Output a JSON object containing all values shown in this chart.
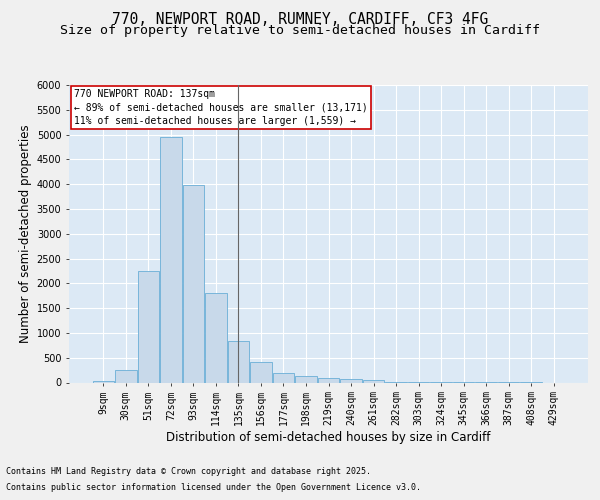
{
  "title_line1": "770, NEWPORT ROAD, RUMNEY, CARDIFF, CF3 4FG",
  "title_line2": "Size of property relative to semi-detached houses in Cardiff",
  "xlabel": "Distribution of semi-detached houses by size in Cardiff",
  "ylabel": "Number of semi-detached properties",
  "footer_line1": "Contains HM Land Registry data © Crown copyright and database right 2025.",
  "footer_line2": "Contains public sector information licensed under the Open Government Licence v3.0.",
  "categories": [
    "9sqm",
    "30sqm",
    "51sqm",
    "72sqm",
    "93sqm",
    "114sqm",
    "135sqm",
    "156sqm",
    "177sqm",
    "198sqm",
    "219sqm",
    "240sqm",
    "261sqm",
    "282sqm",
    "303sqm",
    "324sqm",
    "345sqm",
    "366sqm",
    "387sqm",
    "408sqm",
    "429sqm"
  ],
  "values": [
    30,
    255,
    2250,
    4950,
    3980,
    1800,
    840,
    410,
    200,
    130,
    90,
    65,
    45,
    20,
    10,
    5,
    3,
    2,
    1,
    1,
    0
  ],
  "bar_color": "#c8d9ea",
  "bar_edge_color": "#6aaed6",
  "highlight_index": 6,
  "highlight_line_color": "#666666",
  "annotation_text_line1": "770 NEWPORT ROAD: 137sqm",
  "annotation_text_line2": "← 89% of semi-detached houses are smaller (13,171)",
  "annotation_text_line3": "11% of semi-detached houses are larger (1,559) →",
  "annotation_box_facecolor": "#ffffff",
  "annotation_box_edgecolor": "#cc0000",
  "ylim": [
    0,
    6000
  ],
  "yticks": [
    0,
    500,
    1000,
    1500,
    2000,
    2500,
    3000,
    3500,
    4000,
    4500,
    5000,
    5500,
    6000
  ],
  "plot_bg_color": "#dce9f5",
  "fig_bg_color": "#f0f0f0",
  "grid_color": "#ffffff",
  "title_fontsize": 10.5,
  "subtitle_fontsize": 9.5,
  "axis_label_fontsize": 8.5,
  "tick_fontsize": 7,
  "annotation_fontsize": 7,
  "footer_fontsize": 6
}
